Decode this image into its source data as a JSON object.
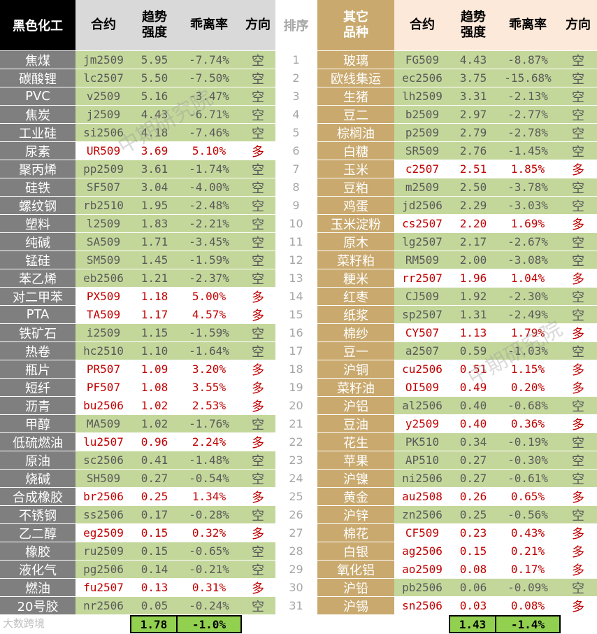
{
  "left": {
    "header": {
      "category": "黑色化工",
      "contract": "合约",
      "strength": "趋势\n强度",
      "deviation": "乖离率",
      "direction": "方向"
    },
    "rows": [
      [
        "焦煤",
        "jm2509",
        "5.95",
        "-7.74%",
        "空"
      ],
      [
        "碳酸锂",
        "lc2507",
        "5.50",
        "-7.50%",
        "空"
      ],
      [
        "PVC",
        "v2509",
        "5.16",
        "-3.47%",
        "空"
      ],
      [
        "焦炭",
        "j2509",
        "4.43",
        "-6.71%",
        "空"
      ],
      [
        "工业硅",
        "si2506",
        "4.18",
        "-7.46%",
        "空"
      ],
      [
        "尿素",
        "UR509",
        "3.69",
        "5.10%",
        "多"
      ],
      [
        "聚丙烯",
        "pp2509",
        "3.61",
        "-1.74%",
        "空"
      ],
      [
        "硅铁",
        "SF507",
        "3.04",
        "-4.00%",
        "空"
      ],
      [
        "螺纹钢",
        "rb2510",
        "1.95",
        "-2.48%",
        "空"
      ],
      [
        "塑料",
        "l2509",
        "1.83",
        "-2.21%",
        "空"
      ],
      [
        "纯碱",
        "SA509",
        "1.71",
        "-3.45%",
        "空"
      ],
      [
        "锰硅",
        "SM509",
        "1.45",
        "-1.59%",
        "空"
      ],
      [
        "苯乙烯",
        "eb2506",
        "1.21",
        "-2.37%",
        "空"
      ],
      [
        "对二甲苯",
        "PX509",
        "1.18",
        "5.00%",
        "多"
      ],
      [
        "PTA",
        "TA509",
        "1.17",
        "4.57%",
        "多"
      ],
      [
        "铁矿石",
        "i2509",
        "1.15",
        "-1.59%",
        "空"
      ],
      [
        "热卷",
        "hc2510",
        "1.10",
        "-1.64%",
        "空"
      ],
      [
        "瓶片",
        "PR507",
        "1.09",
        "3.20%",
        "多"
      ],
      [
        "短纤",
        "PF507",
        "1.08",
        "3.55%",
        "多"
      ],
      [
        "沥青",
        "bu2506",
        "1.02",
        "2.53%",
        "多"
      ],
      [
        "甲醇",
        "MA509",
        "1.02",
        "-1.76%",
        "空"
      ],
      [
        "低硫燃油",
        "lu2507",
        "0.96",
        "2.24%",
        "多"
      ],
      [
        "原油",
        "sc2506",
        "0.41",
        "-1.48%",
        "空"
      ],
      [
        "烧碱",
        "SH509",
        "0.27",
        "-0.54%",
        "空"
      ],
      [
        "合成橡胶",
        "br2506",
        "0.25",
        "1.34%",
        "多"
      ],
      [
        "不锈钢",
        "ss2506",
        "0.17",
        "-0.28%",
        "空"
      ],
      [
        "乙二醇",
        "eg2509",
        "0.15",
        "0.32%",
        "多"
      ],
      [
        "橡胶",
        "ru2509",
        "0.15",
        "-0.65%",
        "空"
      ],
      [
        "液化气",
        "pg2506",
        "0.14",
        "-0.21%",
        "空"
      ],
      [
        "燃油",
        "fu2507",
        "0.13",
        "0.31%",
        "多"
      ],
      [
        "20号胶",
        "nr2506",
        "0.05",
        "-0.24%",
        "空"
      ]
    ],
    "summary": {
      "strength": "1.78",
      "deviation": "-1.0%"
    }
  },
  "rank_header": "排序",
  "ranks": [
    "1",
    "2",
    "3",
    "4",
    "5",
    "6",
    "7",
    "8",
    "9",
    "10",
    "11",
    "12",
    "13",
    "14",
    "15",
    "16",
    "17",
    "18",
    "19",
    "20",
    "21",
    "22",
    "23",
    "24",
    "25",
    "26",
    "27",
    "28",
    "29",
    "30",
    "31"
  ],
  "right": {
    "header": {
      "category": "其它\n品种",
      "contract": "合约",
      "strength": "趋势\n强度",
      "deviation": "乖离率",
      "direction": "方向"
    },
    "rows": [
      [
        "玻璃",
        "FG509",
        "4.43",
        "-8.87%",
        "空"
      ],
      [
        "欧线集运",
        "ec2506",
        "3.75",
        "-15.68%",
        "空"
      ],
      [
        "生猪",
        "lh2509",
        "3.31",
        "-2.13%",
        "空"
      ],
      [
        "豆二",
        "b2509",
        "2.97",
        "-2.77%",
        "空"
      ],
      [
        "棕榈油",
        "p2509",
        "2.79",
        "-2.78%",
        "空"
      ],
      [
        "白糖",
        "SR509",
        "2.76",
        "-1.45%",
        "空"
      ],
      [
        "玉米",
        "c2507",
        "2.51",
        "1.85%",
        "多"
      ],
      [
        "豆粕",
        "m2509",
        "2.50",
        "-3.78%",
        "空"
      ],
      [
        "鸡蛋",
        "jd2506",
        "2.29",
        "-3.03%",
        "空"
      ],
      [
        "玉米淀粉",
        "cs2507",
        "2.20",
        "1.69%",
        "多"
      ],
      [
        "原木",
        "lg2507",
        "2.17",
        "-2.67%",
        "空"
      ],
      [
        "菜籽粕",
        "RM509",
        "2.00",
        "-3.08%",
        "空"
      ],
      [
        "粳米",
        "rr2507",
        "1.96",
        "1.04%",
        "多"
      ],
      [
        "红枣",
        "CJ509",
        "1.92",
        "-2.30%",
        "空"
      ],
      [
        "纸浆",
        "sp2507",
        "1.31",
        "-2.49%",
        "空"
      ],
      [
        "棉纱",
        "CY507",
        "1.13",
        "1.79%",
        "多"
      ],
      [
        "豆一",
        "a2507",
        "0.59",
        "-1.03%",
        "空"
      ],
      [
        "沪铜",
        "cu2506",
        "0.51",
        "1.15%",
        "多"
      ],
      [
        "菜籽油",
        "OI509",
        "0.49",
        "0.20%",
        "多"
      ],
      [
        "沪铝",
        "al2506",
        "0.40",
        "-0.68%",
        "空"
      ],
      [
        "豆油",
        "y2509",
        "0.40",
        "0.36%",
        "多"
      ],
      [
        "花生",
        "PK510",
        "0.34",
        "-0.19%",
        "空"
      ],
      [
        "苹果",
        "AP510",
        "0.27",
        "-0.30%",
        "空"
      ],
      [
        "沪镍",
        "ni2506",
        "0.27",
        "-0.61%",
        "空"
      ],
      [
        "黄金",
        "au2508",
        "0.26",
        "0.65%",
        "多"
      ],
      [
        "沪锌",
        "zn2506",
        "0.25",
        "-0.56%",
        "空"
      ],
      [
        "棉花",
        "CF509",
        "0.23",
        "0.43%",
        "多"
      ],
      [
        "白银",
        "ag2506",
        "0.15",
        "0.21%",
        "多"
      ],
      [
        "氧化铝",
        "ao2509",
        "0.08",
        "0.17%",
        "多"
      ],
      [
        "沪铅",
        "pb2506",
        "0.06",
        "-0.09%",
        "空"
      ],
      [
        "沪锡",
        "sn2506",
        "0.03",
        "0.08%",
        "多"
      ]
    ],
    "summary": {
      "strength": "1.43",
      "deviation": "-1.4%"
    }
  },
  "long_label": "多",
  "watermark": "中期研究院",
  "logo_text": "大数跨境"
}
